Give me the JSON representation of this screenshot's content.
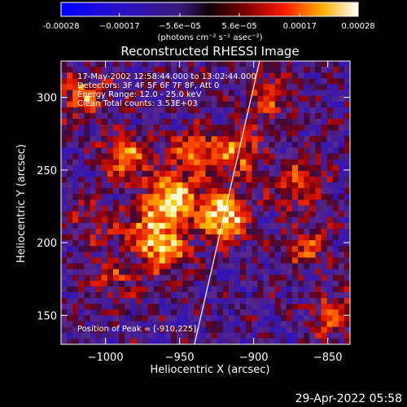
{
  "chart_data": {
    "type": "heatmap",
    "title": "Reconstructed RHESSI Image",
    "xlabel": "Heliocentric X (arcsec)",
    "ylabel": "Heliocentric Y (arcsec)",
    "xlim": [
      -1030,
      -835
    ],
    "ylim": [
      130,
      325
    ],
    "xticks": [
      -1000,
      -950,
      -900,
      -850
    ],
    "xtick_labels": [
      "−1000",
      "−950",
      "−900",
      "−850"
    ],
    "yticks": [
      150,
      200,
      250,
      300
    ],
    "ytick_labels": [
      "150",
      "200",
      "250",
      "300"
    ],
    "colorbar": {
      "range": [
        -0.00028,
        0.00028
      ],
      "tick_labels": [
        "-0.00028",
        "−0.00017",
        "−5.6e−05",
        "5.6e−05",
        "0.00017",
        "0.00028"
      ],
      "ticks": [
        -0.00028,
        -0.00017,
        -5.6e-05,
        5.6e-05,
        0.00017,
        0.00028
      ],
      "unit_label": "(photons cm⁻² s⁻¹ asec⁻²)"
    },
    "annotations": [
      "17-May-2002 12:58:44.000 to 13:02:44.000",
      "Detectors: 3F 4F 5F 6F 7F 8F, Att 0",
      "Energy Range: 12.0 - 25.0 keV",
      "Clean     Total counts: 3.53E+03"
    ],
    "peak_label": "Position of Peak = [-910,225]",
    "limb_line": [
      [
        -940,
        130
      ],
      [
        -896,
        325
      ]
    ],
    "sources": [
      {
        "x": -920,
        "y": 218,
        "peak": 1.0
      },
      {
        "x": -955,
        "y": 230,
        "peak": 0.95
      },
      {
        "x": -940,
        "y": 262,
        "peak": 0.7
      },
      {
        "x": -985,
        "y": 258,
        "peak": 0.65
      },
      {
        "x": -910,
        "y": 262,
        "peak": 0.6
      },
      {
        "x": -960,
        "y": 195,
        "peak": 0.75
      },
      {
        "x": -975,
        "y": 210,
        "peak": 0.55
      },
      {
        "x": -1015,
        "y": 300,
        "peak": 0.6
      },
      {
        "x": -870,
        "y": 240,
        "peak": 0.5
      },
      {
        "x": -865,
        "y": 195,
        "peak": 0.45
      },
      {
        "x": -845,
        "y": 150,
        "peak": 0.55
      },
      {
        "x": -995,
        "y": 175,
        "peak": 0.35
      },
      {
        "x": -890,
        "y": 300,
        "peak": 0.45
      },
      {
        "x": -1010,
        "y": 215,
        "peak": 0.3
      }
    ]
  },
  "footer": {
    "date": "29-Apr-2022 05:58"
  }
}
